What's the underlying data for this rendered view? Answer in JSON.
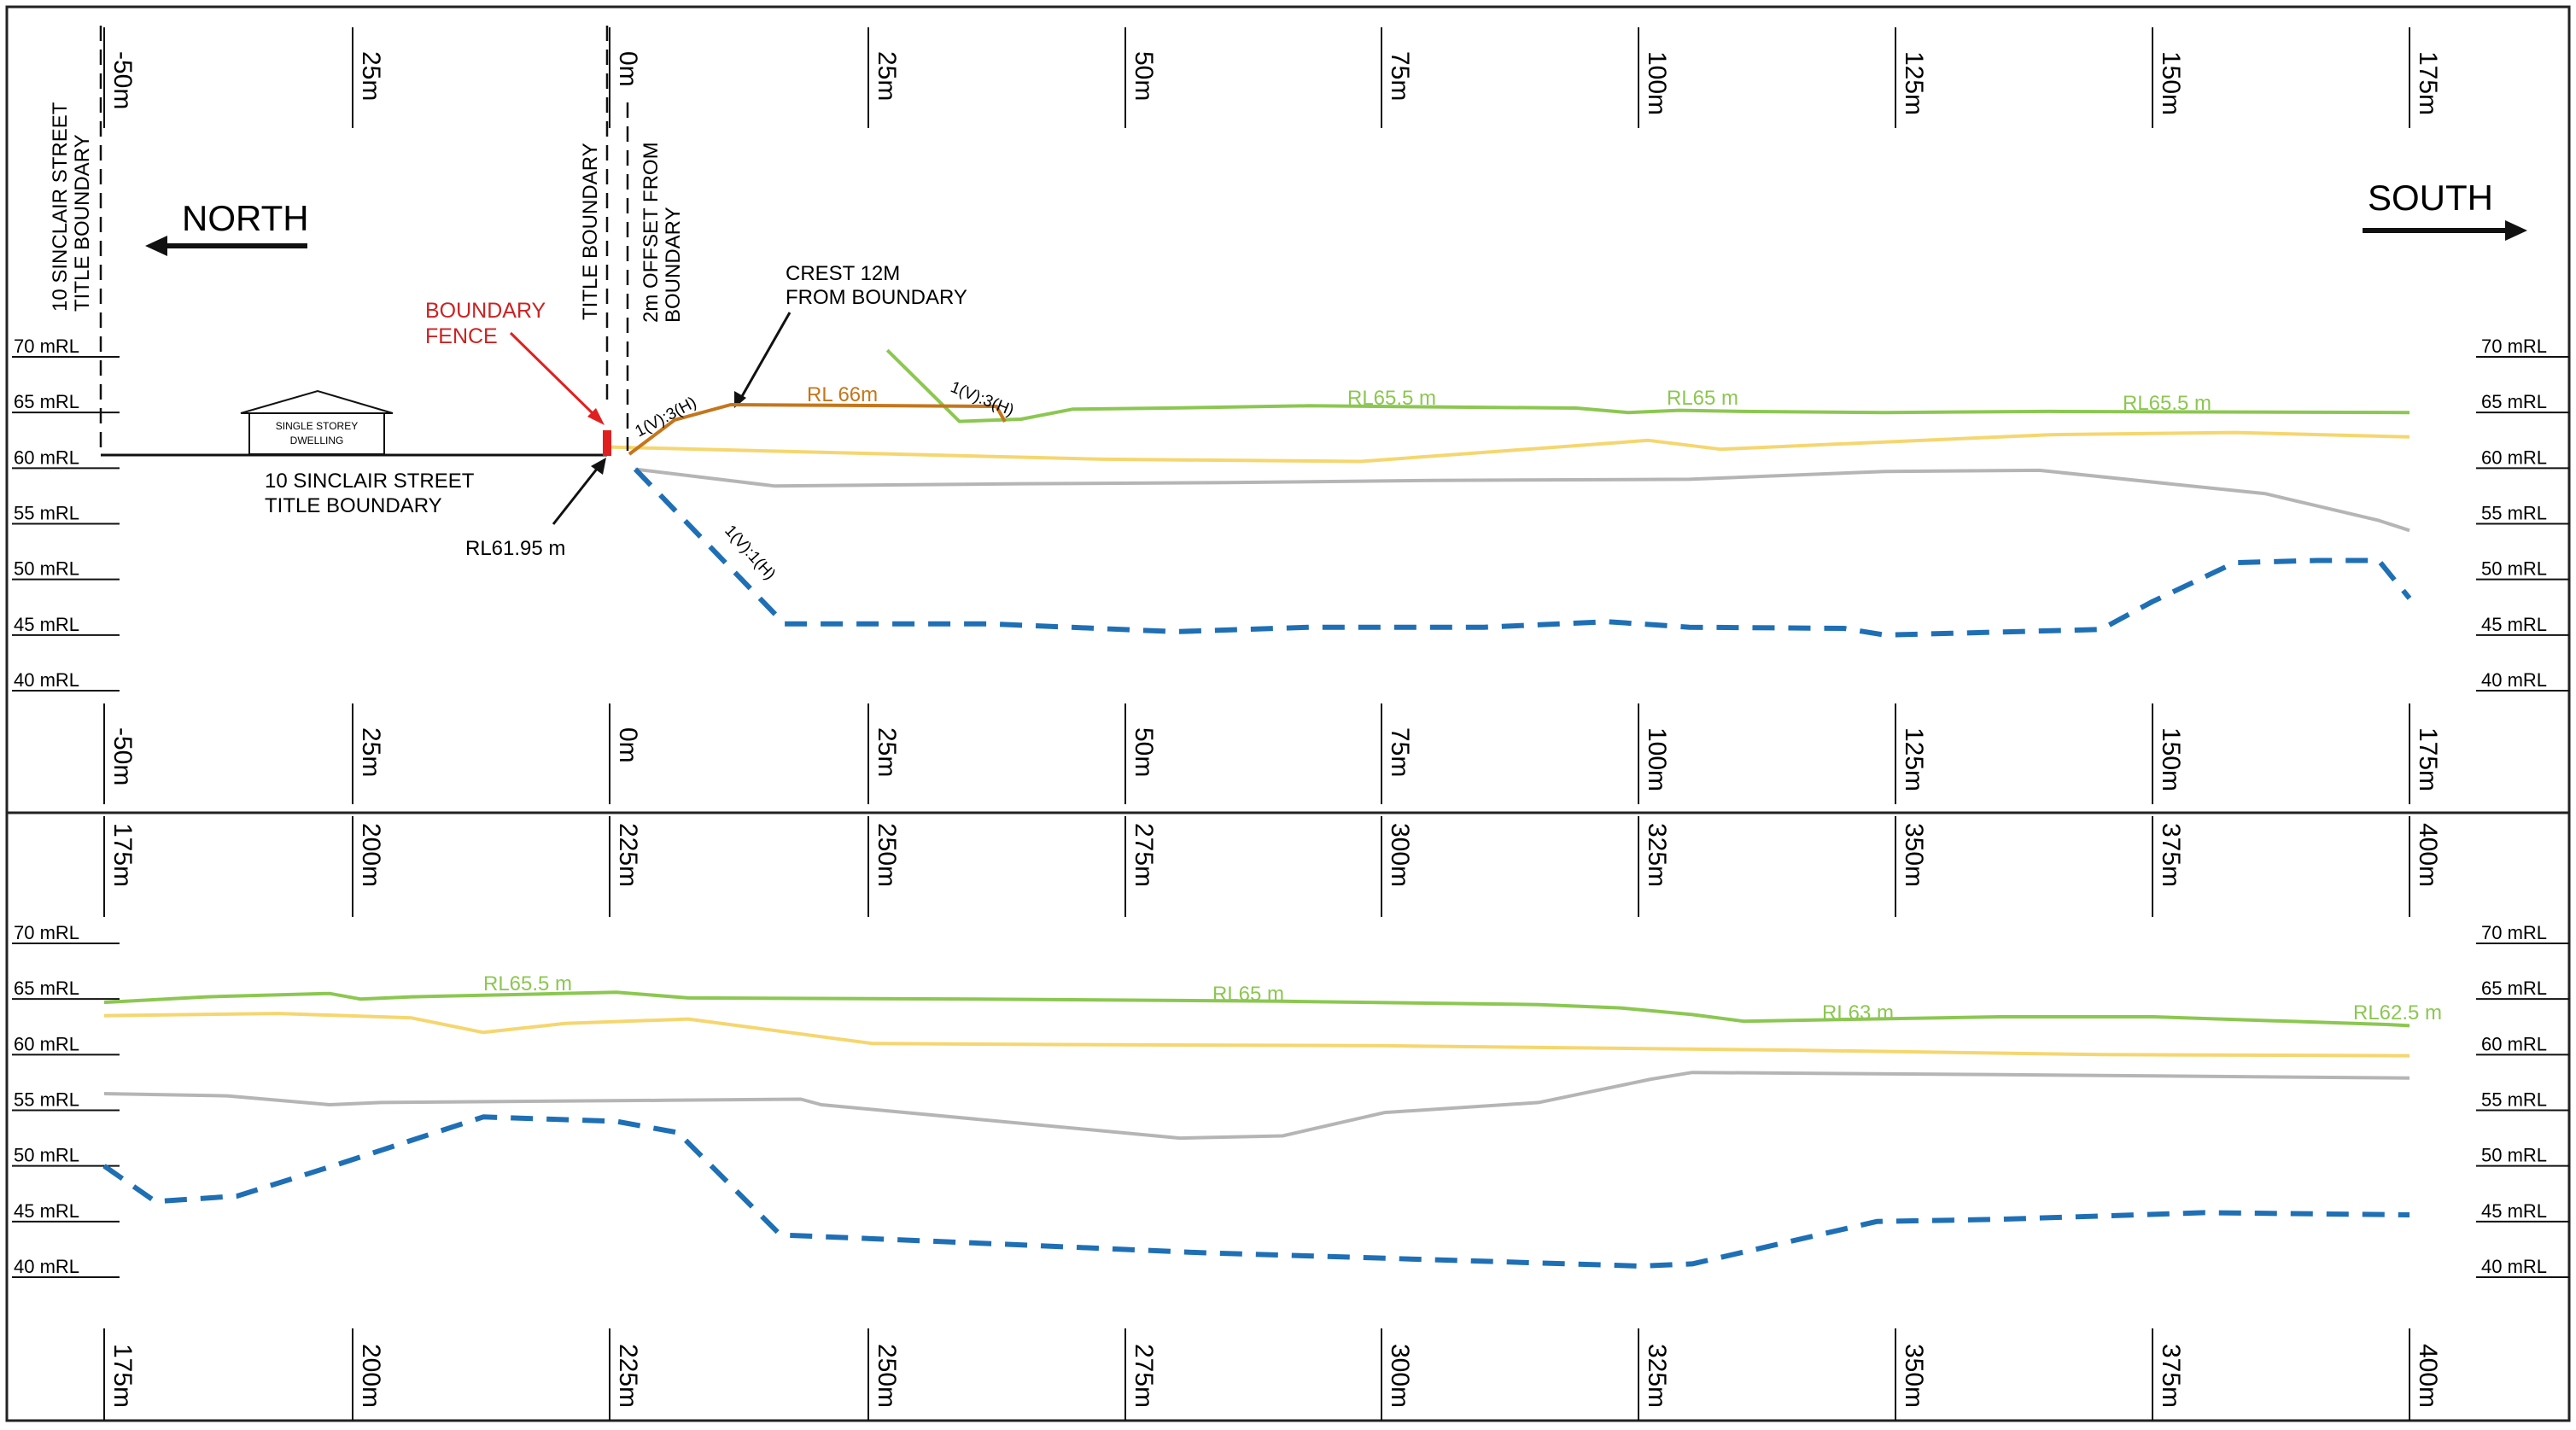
{
  "section1": {
    "top_ticks": [
      "-50m",
      "25m",
      "0m",
      "25m",
      "50m",
      "75m",
      "100m",
      "125m",
      "150m",
      "175m"
    ],
    "bottom_ticks": [
      "-50m",
      "25m",
      "0m",
      "25m",
      "50m",
      "75m",
      "100m",
      "125m",
      "150m",
      "175m"
    ]
  },
  "section2": {
    "top_ticks": [
      "175m",
      "200m",
      "225m",
      "250m",
      "275m",
      "300m",
      "325m",
      "350m",
      "375m",
      "400m"
    ],
    "bottom_ticks": [
      "175m",
      "200m",
      "225m",
      "250m",
      "275m",
      "300m",
      "325m",
      "350m",
      "375m",
      "400m"
    ]
  },
  "rl_labels": [
    "70 mRL",
    "65 mRL",
    "60 mRL",
    "55 mRL",
    "50 mRL",
    "45 mRL",
    "40 mRL"
  ],
  "north_label": "NORTH",
  "south_label": "SOUTH",
  "annotations": {
    "sinclair_boundary_vertical": [
      "10 SINCLAIR STREET",
      "TITLE BOUNDARY"
    ],
    "sinclair_boundary_bottom": [
      "10 SINCLAIR STREET",
      "TITLE BOUNDARY"
    ],
    "dwelling": [
      "SINGLE STOREY",
      "DWELLING"
    ],
    "boundary_fence": [
      "BOUNDARY",
      "FENCE"
    ],
    "title_boundary": "TITLE BOUNDARY",
    "offset_from_boundary": [
      "2m OFFSET FROM",
      "BOUNDARY"
    ],
    "crest": [
      "CREST 12M",
      "FROM BOUNDARY"
    ],
    "rl_6195": "RL61.95 m",
    "slope_1v3h_a": "1(V):3(H)",
    "slope_1v3h_b": "1(V):3(H)",
    "slope_1v1h": "1(V):1(H)",
    "rl66": "RL 66m",
    "s1_green": [
      "RL65.5 m",
      "RL65 m",
      "RL65.5 m"
    ],
    "s2_green": [
      "RL65.5 m",
      "RL65 m",
      "RL63 m",
      "RL62.5 m"
    ]
  },
  "colors": {
    "green": "#8cc751",
    "yellow": "#f5d66f",
    "grey": "#b5b5b5",
    "blue": "#1f6fb5",
    "orange": "#c4761c",
    "red": "#e02020",
    "black": "#111111"
  },
  "profiles": {
    "s1": {
      "green": [
        [
          27,
          70.6
        ],
        [
          34,
          64.2
        ],
        [
          40,
          64.4
        ],
        [
          45,
          65.3
        ],
        [
          54,
          65.4
        ],
        [
          68,
          65.6
        ],
        [
          80,
          65.5
        ],
        [
          94,
          65.4
        ],
        [
          99,
          65.0
        ],
        [
          104,
          65.2
        ],
        [
          110,
          65.1
        ],
        [
          124,
          65.0
        ],
        [
          140,
          65.1
        ],
        [
          175,
          65.0
        ]
      ],
      "yellow": [
        [
          0,
          61.9
        ],
        [
          26,
          61.3
        ],
        [
          48,
          60.8
        ],
        [
          73,
          60.6
        ],
        [
          101,
          62.5
        ],
        [
          108,
          61.7
        ],
        [
          140,
          63.0
        ],
        [
          158,
          63.2
        ],
        [
          175,
          62.8
        ]
      ],
      "grey": [
        [
          2.5,
          59.9
        ],
        [
          16,
          58.4
        ],
        [
          40,
          58.6
        ],
        [
          60,
          58.7
        ],
        [
          80,
          58.9
        ],
        [
          105,
          59.0
        ],
        [
          124,
          59.7
        ],
        [
          139,
          59.8
        ],
        [
          161,
          57.7
        ],
        [
          172,
          55.3
        ],
        [
          175,
          54.4
        ]
      ],
      "blue": [
        [
          2.5,
          59.9
        ],
        [
          17,
          46.0
        ],
        [
          37,
          46.0
        ],
        [
          55,
          45.3
        ],
        [
          68,
          45.7
        ],
        [
          85,
          45.7
        ],
        [
          97,
          46.2
        ],
        [
          105,
          45.7
        ],
        [
          120,
          45.6
        ],
        [
          124,
          45.0
        ],
        [
          145,
          45.5
        ],
        [
          150,
          48.0
        ],
        [
          158,
          51.5
        ],
        [
          166,
          51.7
        ],
        [
          172,
          51.7
        ],
        [
          175,
          48.3
        ]
      ]
    },
    "s2": {
      "green": [
        [
          175,
          64.7
        ],
        [
          185,
          65.2
        ],
        [
          197,
          65.5
        ],
        [
          200,
          65.0
        ],
        [
          205,
          65.2
        ],
        [
          215,
          65.4
        ],
        [
          225,
          65.6
        ],
        [
          232,
          65.1
        ],
        [
          260,
          65.0
        ],
        [
          290,
          64.8
        ],
        [
          315,
          64.5
        ],
        [
          323,
          64.2
        ],
        [
          330,
          63.6
        ],
        [
          335,
          63.0
        ],
        [
          360,
          63.4
        ],
        [
          375,
          63.4
        ],
        [
          398,
          62.7
        ],
        [
          400,
          62.6
        ]
      ],
      "yellow": [
        [
          175,
          63.5
        ],
        [
          192,
          63.7
        ],
        [
          205,
          63.3
        ],
        [
          212,
          62.0
        ],
        [
          220,
          62.8
        ],
        [
          232,
          63.2
        ],
        [
          250,
          61.0
        ],
        [
          270,
          60.9
        ],
        [
          300,
          60.8
        ],
        [
          340,
          60.4
        ],
        [
          370,
          60.0
        ],
        [
          400,
          59.9
        ]
      ],
      "grey": [
        [
          175,
          56.5
        ],
        [
          187,
          56.3
        ],
        [
          197,
          55.5
        ],
        [
          202,
          55.7
        ],
        [
          215,
          55.8
        ],
        [
          230,
          55.9
        ],
        [
          243,
          56.0
        ],
        [
          245,
          55.5
        ],
        [
          280,
          52.5
        ],
        [
          290,
          52.7
        ],
        [
          300,
          54.8
        ],
        [
          315,
          55.7
        ],
        [
          326,
          57.8
        ],
        [
          330,
          58.4
        ],
        [
          360,
          58.2
        ],
        [
          400,
          57.9
        ]
      ],
      "blue": [
        [
          175,
          50.0
        ],
        [
          180,
          46.8
        ],
        [
          188,
          47.3
        ],
        [
          198,
          50.2
        ],
        [
          212,
          54.4
        ],
        [
          225,
          54.0
        ],
        [
          231,
          53.0
        ],
        [
          241,
          43.8
        ],
        [
          262,
          43.0
        ],
        [
          282,
          42.2
        ],
        [
          300,
          41.7
        ],
        [
          325,
          41.0
        ],
        [
          330,
          41.2
        ],
        [
          348,
          45.0
        ],
        [
          360,
          45.2
        ],
        [
          380,
          45.8
        ],
        [
          400,
          45.6
        ]
      ]
    }
  }
}
